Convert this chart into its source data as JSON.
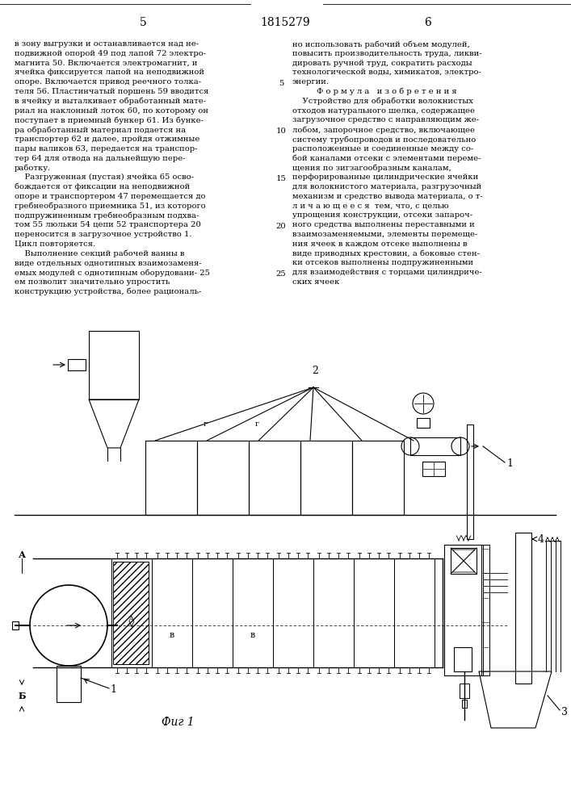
{
  "page_number_left": "5",
  "page_number_center": "1815279",
  "page_number_right": "6",
  "left_text": [
    "в зону выгрузки и останавливается над не-",
    "подвижной опорой 49 под лапой 72 электро-",
    "магнита 50. Включается электромагнит, и",
    "ячейка фиксируется лапой на неподвижной",
    "опоре. Включается привод реечного толка-",
    "теля 56. Пластинчатый поршень 59 вводится",
    "в ячейку и выталкивает обработанный мате-",
    "риал на наклонный лоток 60, по которому он",
    "поступает в приемный бункер 61. Из бунке-",
    "ра обработанный материал подается на",
    "транспортер 62 и далее, пройдя отжимные",
    "пары валиков 63, передается на транспор-",
    "тер 64 для отвода на дальнейшую пере-",
    "работку.",
    "    Разгруженная (пустая) ячейка 65 осво-",
    "бождается от фиксации на неподвижной",
    "опоре и транспортером 47 перемещается до",
    "гребнеобразного приемника 51, из которого",
    "подпружиненным гребнеобразным подхва-",
    "том 55 люльки 54 цепи 52 транспортера 20",
    "переносится в загрузочное устройство 1.",
    "Цикл повторяется.",
    "    Выполнение секций рабочей ванны в",
    "виде отдельных однотипных взаимозаменя-",
    "емых модулей с однотипным оборудовани- 25",
    "ем позволит значительно упростить",
    "конструкцию устройства, более рациональ-"
  ],
  "right_text": [
    "но использовать рабочий объем модулей,",
    "повысить производительность труда, ликви-",
    "дировать ручной труд, сократить расходы",
    "технологической воды, химикатов, электро-",
    "энергии.",
    "Ф о р м у л а   и з о б р е т е н и я",
    "    Устройство для обработки волокнистых",
    "отходов натурального шелка, содержащее",
    "загрузочное средство с направляющим же-",
    "лобом, запорочное средство, включающее",
    "систему трубопроводов и последовательно",
    "расположенные и соединенные между со-",
    "бой каналами отсеки с элементами переме-",
    "щения по зигзагообразным каналам,",
    "перфорированные цилиндрические ячейки",
    "для волокнистого материала, разгрузочный",
    "механизм и средство вывода материала, о т-",
    "л и ч а ю щ е е с я  тем, что, с целью",
    "упрощения конструкции, отсеки запароч-",
    "ного средства выполнены переставными и",
    "взаимозаменяемыми, элементы перемеще-",
    "ния ячеек в каждом отсеке выполнены в",
    "виде приводных крестовин, а боковые стен-",
    "ки отсеков выполнены подпружиненными",
    "для взаимодействия с торцами цилиндриче-",
    "ских ячеек"
  ],
  "fig_label": "Фиг 1",
  "bg_color": "#ffffff",
  "line_numbers": [
    5,
    10,
    15,
    20,
    25
  ]
}
